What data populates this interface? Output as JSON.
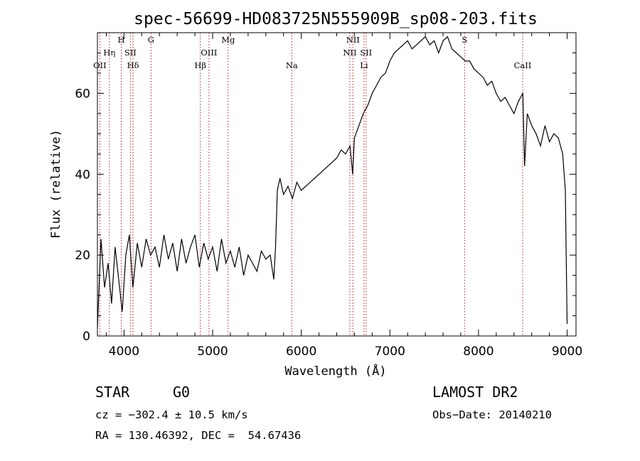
{
  "chart_data": {
    "type": "line",
    "title": "spec-56699-HD083725N555909B_sp08-203.fits",
    "xlabel": "Wavelength (Å)",
    "ylabel": "Flux (relative)",
    "xlim": [
      3700,
      9100
    ],
    "ylim": [
      0,
      75
    ],
    "x_ticks": [
      4000,
      5000,
      6000,
      7000,
      8000,
      9000
    ],
    "y_ticks": [
      0,
      20,
      40,
      60
    ],
    "grid": false,
    "line_color": "#000000",
    "marker_color": "#b22222",
    "spectral_lines": [
      {
        "name": "OII",
        "wavelength": 3727
      },
      {
        "name": "Hη",
        "wavelength": 3835
      },
      {
        "name": "H",
        "wavelength": 3969
      },
      {
        "name": "Hδ",
        "wavelength": 4102
      },
      {
        "name": "SII",
        "wavelength": 4072
      },
      {
        "name": "G",
        "wavelength": 4305
      },
      {
        "name": "Hβ",
        "wavelength": 4861
      },
      {
        "name": "OIII",
        "wavelength": 4959
      },
      {
        "name": "Mg",
        "wavelength": 5175
      },
      {
        "name": "Na",
        "wavelength": 5893
      },
      {
        "name": "NII",
        "wavelength": 6548
      },
      {
        "name": "NII",
        "wavelength": 6583
      },
      {
        "name": "Li",
        "wavelength": 6708
      },
      {
        "name": "SII",
        "wavelength": 6731
      },
      {
        "name": "S",
        "wavelength": 7843
      },
      {
        "name": "CaII",
        "wavelength": 8498
      }
    ],
    "spectrum": {
      "x": [
        3700,
        3740,
        3780,
        3820,
        3860,
        3900,
        3940,
        3980,
        4020,
        4060,
        4100,
        4150,
        4200,
        4250,
        4300,
        4350,
        4400,
        4450,
        4500,
        4550,
        4600,
        4650,
        4700,
        4750,
        4800,
        4850,
        4900,
        4950,
        5000,
        5050,
        5100,
        5150,
        5200,
        5250,
        5300,
        5350,
        5400,
        5450,
        5500,
        5550,
        5600,
        5650,
        5690,
        5710,
        5730,
        5760,
        5800,
        5850,
        5900,
        5950,
        6000,
        6050,
        6100,
        6150,
        6200,
        6250,
        6300,
        6350,
        6400,
        6450,
        6500,
        6550,
        6580,
        6600,
        6650,
        6700,
        6750,
        6800,
        6850,
        6900,
        6950,
        7000,
        7050,
        7100,
        7150,
        7200,
        7250,
        7300,
        7350,
        7400,
        7450,
        7500,
        7550,
        7600,
        7650,
        7700,
        7750,
        7800,
        7850,
        7900,
        7950,
        8000,
        8050,
        8100,
        8150,
        8200,
        8250,
        8300,
        8350,
        8400,
        8450,
        8500,
        8520,
        8550,
        8600,
        8650,
        8700,
        8750,
        8800,
        8850,
        8900,
        8950,
        8980,
        9000
      ],
      "y": [
        2,
        24,
        12,
        18,
        8,
        22,
        14,
        6,
        20,
        25,
        12,
        23,
        17,
        24,
        20,
        22,
        17,
        25,
        19,
        23,
        16,
        24,
        18,
        22,
        25,
        17,
        23,
        19,
        22,
        16,
        24,
        18,
        21,
        17,
        22,
        15,
        20,
        18,
        16,
        21,
        19,
        20,
        14,
        22,
        36,
        39,
        35,
        37,
        34,
        38,
        36,
        37,
        38,
        39,
        40,
        41,
        42,
        43,
        44,
        46,
        45,
        47,
        40,
        49,
        52,
        55,
        57,
        60,
        62,
        64,
        65,
        68,
        70,
        71,
        72,
        73,
        71,
        72,
        73,
        74,
        72,
        73,
        70,
        73,
        74,
        71,
        70,
        69,
        68,
        68,
        66,
        65,
        64,
        62,
        63,
        60,
        58,
        59,
        57,
        55,
        58,
        60,
        42,
        55,
        52,
        50,
        47,
        52,
        48,
        50,
        49,
        45,
        36,
        3
      ]
    }
  }
}
